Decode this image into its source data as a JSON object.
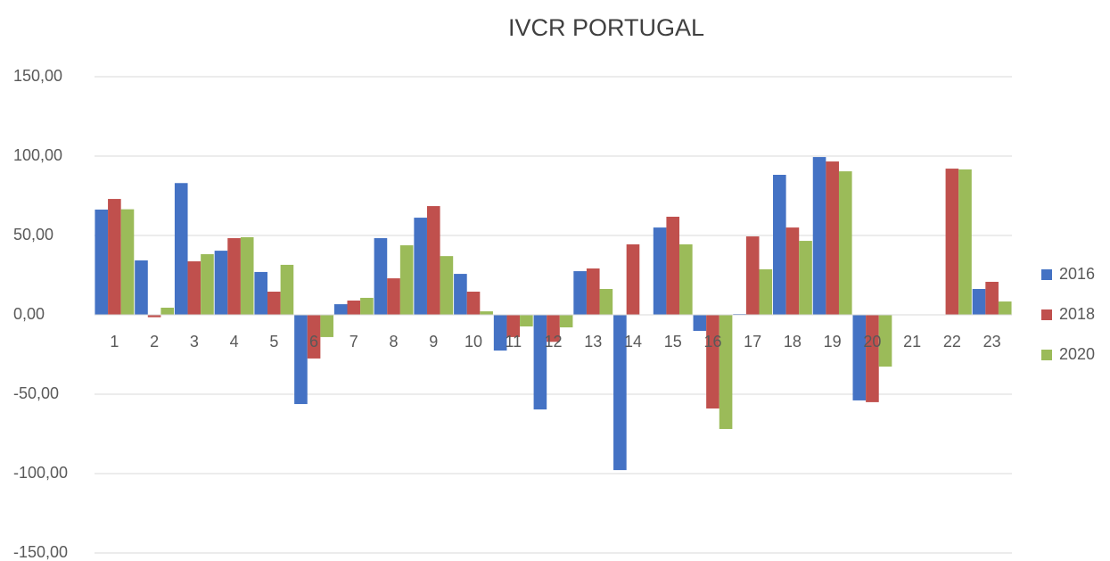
{
  "chart_data": {
    "type": "bar",
    "title": "IVCR PORTUGAL",
    "categories": [
      "1",
      "2",
      "3",
      "4",
      "5",
      "6",
      "7",
      "8",
      "9",
      "10",
      "11",
      "12",
      "13",
      "14",
      "15",
      "16",
      "17",
      "18",
      "19",
      "20",
      "21",
      "22",
      "23"
    ],
    "series": [
      {
        "name": "2016",
        "color": "#4472c4",
        "values": [
          66.3,
          34.3,
          83,
          40.4,
          27,
          -56.2,
          6.7,
          48.3,
          61.2,
          25.8,
          -22.5,
          -59.6,
          27.5,
          -97.8,
          55,
          -10.1,
          0.5,
          88.2,
          99.4,
          -53.9,
          null,
          null,
          16.3
        ]
      },
      {
        "name": "2018",
        "color": "#c0504d",
        "values": [
          73,
          -1.5,
          33.7,
          48.3,
          14.6,
          -27.5,
          9,
          23,
          68.5,
          14.6,
          -14,
          -17,
          29.2,
          44.4,
          61.8,
          -59,
          49.4,
          55,
          96.6,
          -55,
          null,
          92.1,
          20.8
        ]
      },
      {
        "name": "2020",
        "color": "#9bbb59",
        "values": [
          66.5,
          4.5,
          38.2,
          48.9,
          31.5,
          -14,
          10.7,
          43.8,
          37,
          2.2,
          -7.3,
          -7.9,
          16.3,
          null,
          44.4,
          -71.9,
          28.7,
          46.6,
          90.4,
          -32.6,
          null,
          91.6,
          8.4
        ]
      }
    ],
    "ylim": [
      -150,
      150
    ],
    "yticks": [
      {
        "value": -150,
        "label": "-150,00"
      },
      {
        "value": -100,
        "label": "-100,00"
      },
      {
        "value": -50,
        "label": "-50,00"
      },
      {
        "value": 0,
        "label": "0,00"
      },
      {
        "value": 50,
        "label": "50,00"
      },
      {
        "value": 100,
        "label": "100,00"
      },
      {
        "value": 150,
        "label": "150,00"
      }
    ],
    "grid": true,
    "legend": "right"
  }
}
